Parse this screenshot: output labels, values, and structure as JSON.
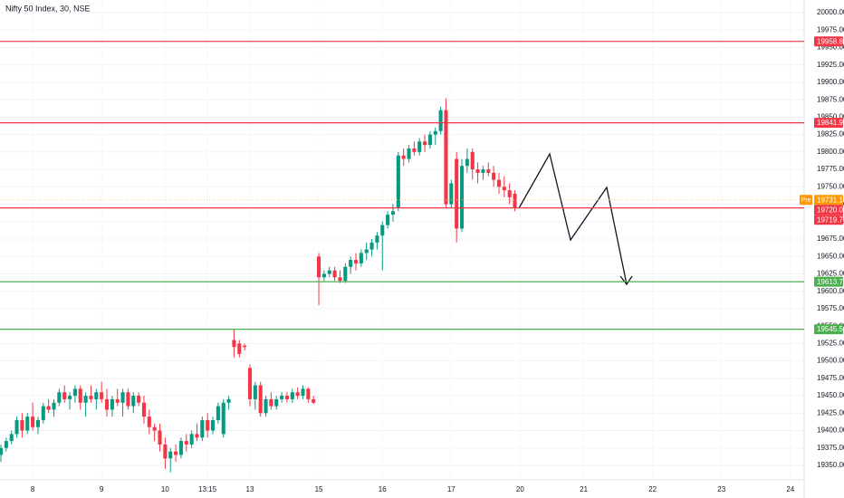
{
  "chart_data": {
    "type": "candlestick",
    "title": "Nifty 50 Index, 30, NSE",
    "up_color": "#089981",
    "down_color": "#f23645",
    "grid": true,
    "xlim": [
      -0.17,
      151.6
    ],
    "ylim": [
      19329.2,
      20018.2
    ],
    "xticks": [
      {
        "value": 6,
        "label": "8"
      },
      {
        "value": 19,
        "label": "9"
      },
      {
        "value": 31,
        "label": "10"
      },
      {
        "value": 39,
        "label": "13:15"
      },
      {
        "value": 47,
        "label": "13"
      },
      {
        "value": 60,
        "label": "15"
      },
      {
        "value": 72,
        "label": "16"
      },
      {
        "value": 85,
        "label": "17"
      },
      {
        "value": 98,
        "label": "20"
      },
      {
        "value": 110,
        "label": "21"
      },
      {
        "value": 123,
        "label": "22"
      },
      {
        "value": 136,
        "label": "23"
      },
      {
        "value": 149,
        "label": "24"
      }
    ],
    "yticks": [
      {
        "value": 20000,
        "label": "20000.00"
      },
      {
        "value": 19975,
        "label": "19975.00"
      },
      {
        "value": 19950,
        "label": "19950.00"
      },
      {
        "value": 19925,
        "label": "19925.00"
      },
      {
        "value": 19900,
        "label": "19900.00"
      },
      {
        "value": 19875,
        "label": "19875.00"
      },
      {
        "value": 19850,
        "label": "19850.00"
      },
      {
        "value": 19825,
        "label": "19825.00"
      },
      {
        "value": 19800,
        "label": "19800.00"
      },
      {
        "value": 19775,
        "label": "19775.00"
      },
      {
        "value": 19750,
        "label": "19750.00"
      },
      {
        "value": 19725,
        "label": "19725.00"
      },
      {
        "value": 19700,
        "label": "19700.00"
      },
      {
        "value": 19675,
        "label": "19675.00"
      },
      {
        "value": 19650,
        "label": "19650.00"
      },
      {
        "value": 19625,
        "label": "19625.00"
      },
      {
        "value": 19600,
        "label": "19600.00"
      },
      {
        "value": 19575,
        "label": "19575.00"
      },
      {
        "value": 19550,
        "label": "19550.00"
      },
      {
        "value": 19525,
        "label": "19525.00"
      },
      {
        "value": 19500,
        "label": "19500.00"
      },
      {
        "value": 19475,
        "label": "19475.00"
      },
      {
        "value": 19450,
        "label": "19450.00"
      },
      {
        "value": 19425,
        "label": "19425.00"
      },
      {
        "value": 19400,
        "label": "19400.00"
      },
      {
        "value": 19375,
        "label": "19375.00"
      },
      {
        "value": 19350,
        "label": "19350.00"
      }
    ],
    "levels": [
      {
        "value": 19958.8,
        "label": "19958.80",
        "color": "#f23645"
      },
      {
        "value": 19841.9,
        "label": "19841.90",
        "color": "#f23645"
      },
      {
        "value": 19719.7,
        "label": "19719.70",
        "color": "#f23645"
      },
      {
        "value": 19613.7,
        "label": "19613.70",
        "color": "#4caf50"
      },
      {
        "value": 19545.5,
        "label": "19545.50",
        "color": "#4caf50"
      }
    ],
    "pre_market": {
      "tag": "Pre",
      "value": 19731.15,
      "label": "19731.15",
      "color": "#ff9800"
    },
    "last": {
      "value": 19720.05,
      "label": "19720.05",
      "color": "#f23645"
    },
    "open": [
      19365,
      19375,
      19385,
      19395,
      19415,
      19400,
      19420,
      19405,
      19415,
      19435,
      19430,
      19440,
      19455,
      19445,
      19450,
      19460,
      19440,
      19450,
      19445,
      19455,
      19445,
      19430,
      19445,
      19440,
      19455,
      19435,
      19450,
      19440,
      19420,
      19405,
      19400,
      19380,
      19360,
      19370,
      19365,
      19385,
      19380,
      19395,
      19390,
      19415,
      19400,
      19415,
      19395,
      19440,
      19530,
      19525,
      19522,
      19490,
      19445,
      19465,
      19425,
      19445,
      19435,
      19445,
      19450,
      19445,
      19455,
      19450,
      19460,
      19445,
      19650,
      19620,
      19625,
      19630,
      19620,
      19615,
      19635,
      19645,
      19640,
      19655,
      19660,
      19670,
      19680,
      19695,
      19710,
      19720,
      19795,
      19790,
      19805,
      19800,
      19815,
      19810,
      19825,
      19830,
      19860,
      19725,
      19790,
      19690,
      19780,
      19800,
      19775,
      19770,
      19775,
      19770,
      19760,
      19750,
      19745,
      19740
    ],
    "high": [
      19380,
      19390,
      19400,
      19420,
      19425,
      19425,
      19440,
      19420,
      19440,
      19445,
      19445,
      19460,
      19465,
      19455,
      19465,
      19465,
      19455,
      19465,
      19460,
      19470,
      19460,
      19450,
      19460,
      19460,
      19460,
      19455,
      19455,
      19450,
      19430,
      19410,
      19410,
      19390,
      19375,
      19380,
      19390,
      19395,
      19400,
      19410,
      19420,
      19425,
      19420,
      19440,
      19445,
      19450,
      19545,
      19530,
      19525,
      19495,
      19470,
      19470,
      19450,
      19455,
      19450,
      19455,
      19455,
      19460,
      19462,
      19465,
      19462,
      19450,
      19655,
      19630,
      19635,
      19635,
      19630,
      19640,
      19650,
      19655,
      19660,
      19670,
      19675,
      19685,
      19700,
      19715,
      19725,
      19800,
      19805,
      19810,
      19815,
      19820,
      19825,
      19830,
      19835,
      19865,
      19877,
      19760,
      19800,
      19790,
      19805,
      19805,
      19785,
      19780,
      19785,
      19780,
      19770,
      19765,
      19755,
      19745
    ],
    "low": [
      19355,
      19370,
      19380,
      19390,
      19390,
      19395,
      19400,
      19395,
      19410,
      19425,
      19420,
      19435,
      19440,
      19430,
      19440,
      19430,
      19420,
      19440,
      19430,
      19440,
      19420,
      19420,
      19435,
      19420,
      19430,
      19425,
      19435,
      19410,
      19395,
      19385,
      19370,
      19345,
      19340,
      19355,
      19360,
      19370,
      19375,
      19385,
      19385,
      19390,
      19395,
      19410,
      19390,
      19430,
      19505,
      19505,
      19515,
      19435,
      19430,
      19420,
      19420,
      19430,
      19430,
      19440,
      19440,
      19440,
      19445,
      19445,
      19440,
      19438,
      19580,
      19615,
      19620,
      19615,
      19612,
      19612,
      19625,
      19630,
      19635,
      19645,
      19650,
      19660,
      19630,
      19690,
      19700,
      19715,
      19780,
      19785,
      19795,
      19795,
      19800,
      19805,
      19810,
      19825,
      19720,
      19720,
      19670,
      19685,
      19770,
      19760,
      19755,
      19760,
      19765,
      19750,
      19740,
      19735,
      19725,
      19715
    ],
    "close": [
      19375,
      19385,
      19395,
      19415,
      19400,
      19420,
      19405,
      19415,
      19435,
      19430,
      19440,
      19455,
      19445,
      19450,
      19460,
      19440,
      19450,
      19445,
      19455,
      19445,
      19430,
      19445,
      19440,
      19455,
      19435,
      19450,
      19440,
      19420,
      19405,
      19400,
      19380,
      19360,
      19370,
      19365,
      19385,
      19380,
      19395,
      19390,
      19415,
      19400,
      19415,
      19435,
      19440,
      19445,
      19520,
      19510,
      19520,
      19445,
      19465,
      19425,
      19445,
      19435,
      19445,
      19450,
      19445,
      19455,
      19450,
      19460,
      19445,
      19440,
      19620,
      19625,
      19630,
      19620,
      19615,
      19635,
      19645,
      19640,
      19655,
      19660,
      19670,
      19680,
      19695,
      19710,
      19715,
      19795,
      19790,
      19805,
      19800,
      19815,
      19810,
      19825,
      19830,
      19860,
      19725,
      19755,
      19690,
      19780,
      19790,
      19775,
      19770,
      19775,
      19770,
      19760,
      19750,
      19745,
      19735,
      19720
    ]
  }
}
